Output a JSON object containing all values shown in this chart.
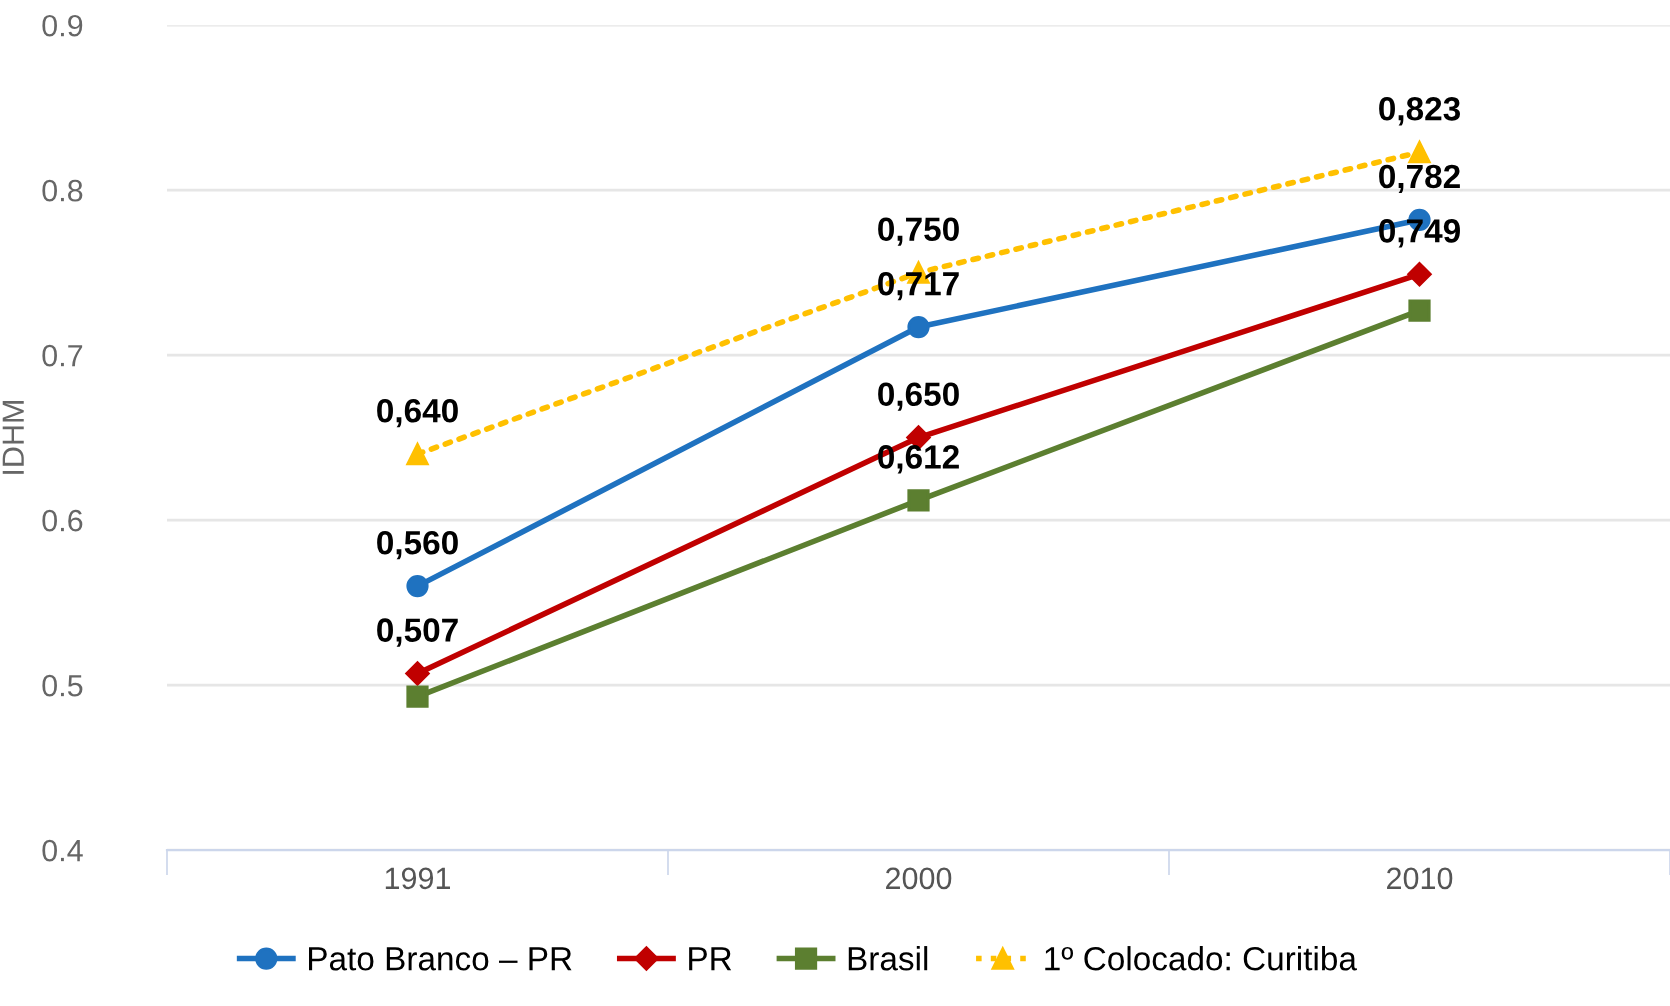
{
  "chart_data": {
    "type": "line",
    "ylabel": "IDHM",
    "categories": [
      "1991",
      "2000",
      "2010"
    ],
    "series": [
      {
        "name": "Pato Branco – PR",
        "color": "#1f72c0",
        "values": [
          0.56,
          0.717,
          0.782
        ],
        "value_labels": [
          "0,560",
          "0,717",
          "0,782"
        ],
        "marker": "circle",
        "line_style": "solid"
      },
      {
        "name": "PR",
        "color": "#c00000",
        "values": [
          0.507,
          0.65,
          0.749
        ],
        "value_labels": [
          "0,507",
          "0,650",
          "0,749"
        ],
        "marker": "diamond",
        "line_style": "solid"
      },
      {
        "name": "Brasil",
        "color": "#5c7f30",
        "values": [
          0.493,
          0.612,
          0.727
        ],
        "value_labels": [
          null,
          "0,612",
          null
        ],
        "marker": "square",
        "line_style": "solid"
      },
      {
        "name": "1º Colocado: Curitiba",
        "color": "#ffc000",
        "values": [
          0.64,
          0.75,
          0.823
        ],
        "value_labels": [
          "0,640",
          "0,750",
          "0,823"
        ],
        "marker": "triangle",
        "line_style": "dotted"
      }
    ],
    "ylim": [
      0.4,
      0.9
    ],
    "yticks": [
      0.4,
      0.5,
      0.6,
      0.7,
      0.8,
      0.9
    ],
    "grid": "y",
    "legend": "bottom"
  }
}
